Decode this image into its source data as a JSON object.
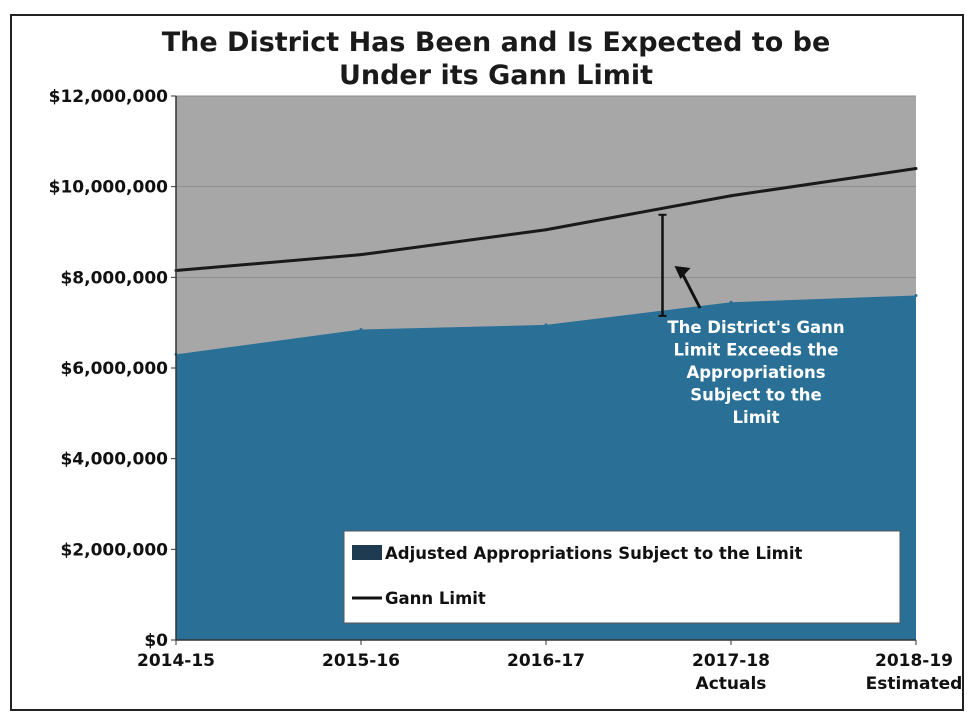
{
  "chart_data": {
    "type": "area",
    "title": "The District Has Been and Is Expected to be Under its Gann Limit",
    "title_lines": [
      "The District Has Been and Is Expected to be",
      "Under its Gann Limit"
    ],
    "categories": [
      "2014-15",
      "2015-16",
      "2016-17",
      "2017-18 Actuals",
      "2018-19 Estimated"
    ],
    "category_lines": [
      [
        "2014-15"
      ],
      [
        "2015-16"
      ],
      [
        "2016-17"
      ],
      [
        "2017-18",
        "Actuals"
      ],
      [
        "2018-19",
        "Estimated"
      ]
    ],
    "series": [
      {
        "name": "Adjusted Appropriations Subject to the Limit",
        "kind": "area",
        "color": "#2a6f96",
        "values": [
          6300000,
          6850000,
          6950000,
          7450000,
          7600000
        ]
      },
      {
        "name": "Gann Limit",
        "kind": "line",
        "color": "#1a1a1a",
        "values": [
          8150000,
          8500000,
          9050000,
          9800000,
          10400000
        ]
      }
    ],
    "ylim": [
      0,
      12000000
    ],
    "yticks": [
      {
        "value": 0,
        "label": "$0"
      },
      {
        "value": 2000000,
        "label": "$2,000,000"
      },
      {
        "value": 4000000,
        "label": "$4,000,000"
      },
      {
        "value": 6000000,
        "label": "$6,000,000"
      },
      {
        "value": 8000000,
        "label": "$8,000,000"
      },
      {
        "value": 10000000,
        "label": "$10,000,000"
      },
      {
        "value": 12000000,
        "label": "$12,000,000"
      }
    ],
    "xlabel": "",
    "ylabel": "",
    "grid": true,
    "legend_position": "bottom-right",
    "annotation": {
      "text_lines": [
        "The District's Gann",
        "Limit Exceeds the",
        "Appropriations",
        "Subject to the",
        "Limit"
      ],
      "x": 2.5,
      "gap_from": 7150000,
      "gap_to": 9380000
    },
    "colors": {
      "plot_background": "#a7a7a7",
      "area": "#2a6f96",
      "line": "#1a1a1a",
      "gridline": "#8c8c8c"
    }
  }
}
